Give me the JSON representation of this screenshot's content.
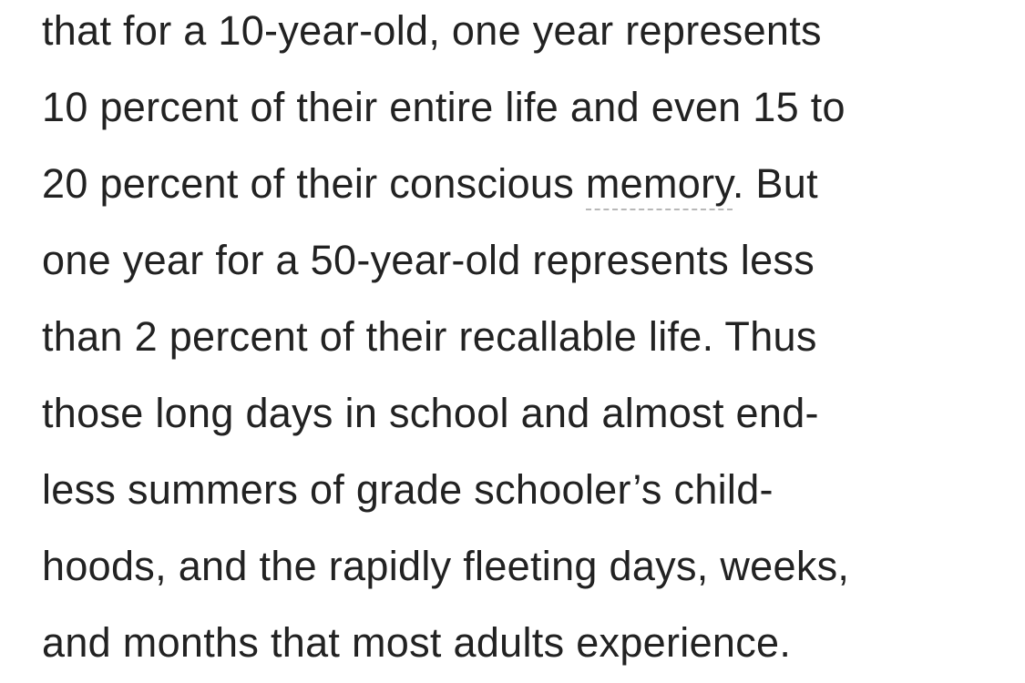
{
  "article": {
    "lines": [
      {
        "text": "that for a 10-year-old, one year represents"
      },
      {
        "text": "10 percent of their entire life and even 15 to"
      },
      {
        "before": "20 percent of their conscious ",
        "link": "memory",
        "after": ". But"
      },
      {
        "text": "one year for a 50-year-old represents less"
      },
      {
        "text": "than 2 percent of their recallable life. Thus"
      },
      {
        "text": "those long days in school and almost end-"
      },
      {
        "text": "less summers of grade schooler’s child-"
      },
      {
        "text": "hoods, and the rapidly fleeting days, weeks,"
      },
      {
        "text": "and months that most adults experience."
      }
    ]
  }
}
